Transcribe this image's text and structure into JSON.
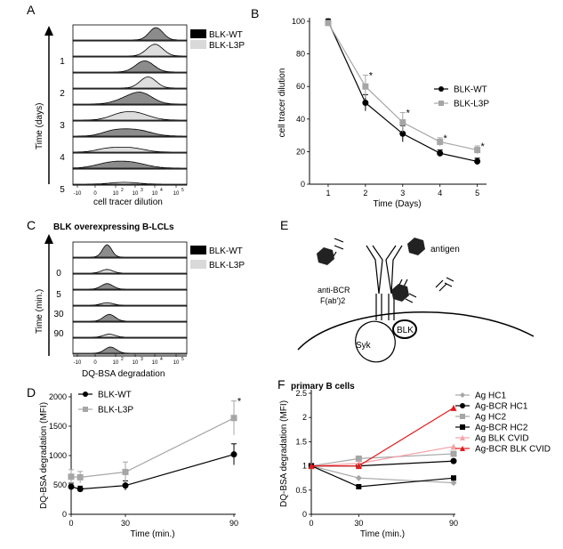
{
  "panels": {
    "A": {
      "letter": "A",
      "legend": [
        "BLK-WT",
        "BLK-L3P"
      ],
      "row_labels": [
        "1",
        "2",
        "3",
        "4",
        "5"
      ],
      "ylabel": "Time (days)",
      "xlabel": "cell tracer dilution",
      "ticks": [
        "-10",
        "0",
        "10",
        "10",
        "10",
        "10"
      ],
      "tick_exps": [
        "",
        "",
        "2",
        "3",
        "4",
        "5"
      ]
    },
    "B": {
      "letter": "B",
      "xlabel": "Time (Days)",
      "ylabel": "cell tracer dilution",
      "xticks": [
        "1",
        "2",
        "3",
        "4",
        "5"
      ],
      "yticks": [
        "0",
        "20",
        "40",
        "60",
        "80",
        "100"
      ],
      "legend": [
        "BLK-WT",
        "BLK-L3P"
      ],
      "star": "*"
    },
    "C": {
      "letter": "C",
      "title": "BLK overexpressing B-LCLs",
      "legend": [
        "BLK-WT",
        "BLK-L3P"
      ],
      "row_labels": [
        "0",
        "5",
        "30",
        "90"
      ],
      "ylabel": "Time (min.)",
      "xlabel": "DQ-BSA degradation",
      "ticks": [
        "-10",
        "0",
        "10",
        "10",
        "10",
        "10"
      ],
      "tick_exps": [
        "",
        "",
        "2",
        "3",
        "4",
        "5"
      ]
    },
    "D": {
      "letter": "D",
      "xlabel": "Time (min.)",
      "ylabel": "DQ-BSA degradation (MFI)",
      "xticks": [
        "0",
        "30",
        "90"
      ],
      "yticks": [
        "0",
        "500",
        "1000",
        "1500",
        "2000"
      ],
      "legend": [
        "BLK-WT",
        "BLK-L3P"
      ],
      "star": "*"
    },
    "E": {
      "letter": "E",
      "labels": {
        "antigen": "antigen",
        "anti_bcr_1": "anti-BCR",
        "anti_bcr_2": "F(ab')2",
        "blk": "BLK",
        "syk": "Syk"
      }
    },
    "F": {
      "letter": "F",
      "title": "primary B cells",
      "xlabel": "Time (min.)",
      "ylabel": "DQ-BSA degradation (MFI)",
      "xticks": [
        "0",
        "30",
        "90"
      ],
      "yticks": [
        "0",
        "0.5",
        "1",
        "1.5",
        "2",
        "2.5"
      ],
      "legend": [
        "Ag HC1",
        "Ag-BCR HC1",
        "Ag HC2",
        "Ag-BCR HC2",
        "Ag BLK CVID",
        "Ag-BCR BLK CVID"
      ]
    }
  },
  "colors": {
    "wt": "#000000",
    "l3p": "#a6a6a6",
    "red": "#e31a1c",
    "pink": "#f4a3a8",
    "dark": "#555555",
    "light": "#c8c8c8"
  },
  "chart_data": [
    {
      "type": "line",
      "panel": "B",
      "xlabel": "Time (Days)",
      "ylabel": "cell tracer dilution",
      "x": [
        1,
        2,
        3,
        4,
        5
      ],
      "xlim": [
        0.5,
        5.2
      ],
      "ylim": [
        0,
        100
      ],
      "series": [
        {
          "name": "BLK-WT",
          "values": [
            100,
            50,
            31,
            19,
            14
          ],
          "errors": [
            1.5,
            5,
            5,
            2,
            2
          ]
        },
        {
          "name": "BLK-L3P",
          "values": [
            99,
            60,
            38,
            26,
            21
          ],
          "errors": [
            1.5,
            7,
            6,
            2.5,
            2.5
          ]
        }
      ],
      "annotations": [
        {
          "x": 2,
          "text": "*"
        },
        {
          "x": 3,
          "text": "*"
        },
        {
          "x": 4,
          "text": "*"
        },
        {
          "x": 5,
          "text": "*"
        }
      ]
    },
    {
      "type": "line",
      "panel": "D",
      "xlabel": "Time (min.)",
      "ylabel": "DQ-BSA degradation (MFI)",
      "x": [
        0,
        5,
        30,
        90
      ],
      "xlim": [
        0,
        90
      ],
      "ylim": [
        0,
        2000
      ],
      "series": [
        {
          "name": "BLK-WT",
          "values": [
            470,
            430,
            490,
            1020
          ],
          "errors": [
            60,
            50,
            80,
            180
          ]
        },
        {
          "name": "BLK-L3P",
          "values": [
            640,
            630,
            720,
            1640
          ],
          "errors": [
            120,
            100,
            170,
            290
          ]
        }
      ],
      "annotations": [
        {
          "x": 90,
          "text": "*"
        }
      ]
    },
    {
      "type": "line",
      "panel": "F",
      "xlabel": "Time (min.)",
      "ylabel": "DQ-BSA degradation (MFI)",
      "x": [
        0,
        30,
        90
      ],
      "xlim": [
        0,
        90
      ],
      "ylim": [
        0,
        2.5
      ],
      "series": [
        {
          "name": "Ag HC1",
          "values": [
            1,
            0.75,
            0.65
          ]
        },
        {
          "name": "Ag-BCR HC1",
          "values": [
            1,
            1.0,
            1.1
          ]
        },
        {
          "name": "Ag HC2",
          "values": [
            1,
            1.15,
            1.25
          ]
        },
        {
          "name": "Ag-BCR HC2",
          "values": [
            1,
            0.57,
            0.75
          ]
        },
        {
          "name": "Ag BLK CVID",
          "values": [
            1,
            1.05,
            1.4
          ]
        },
        {
          "name": "Ag-BCR BLK CVID",
          "values": [
            1,
            1.0,
            2.2
          ]
        }
      ]
    }
  ]
}
